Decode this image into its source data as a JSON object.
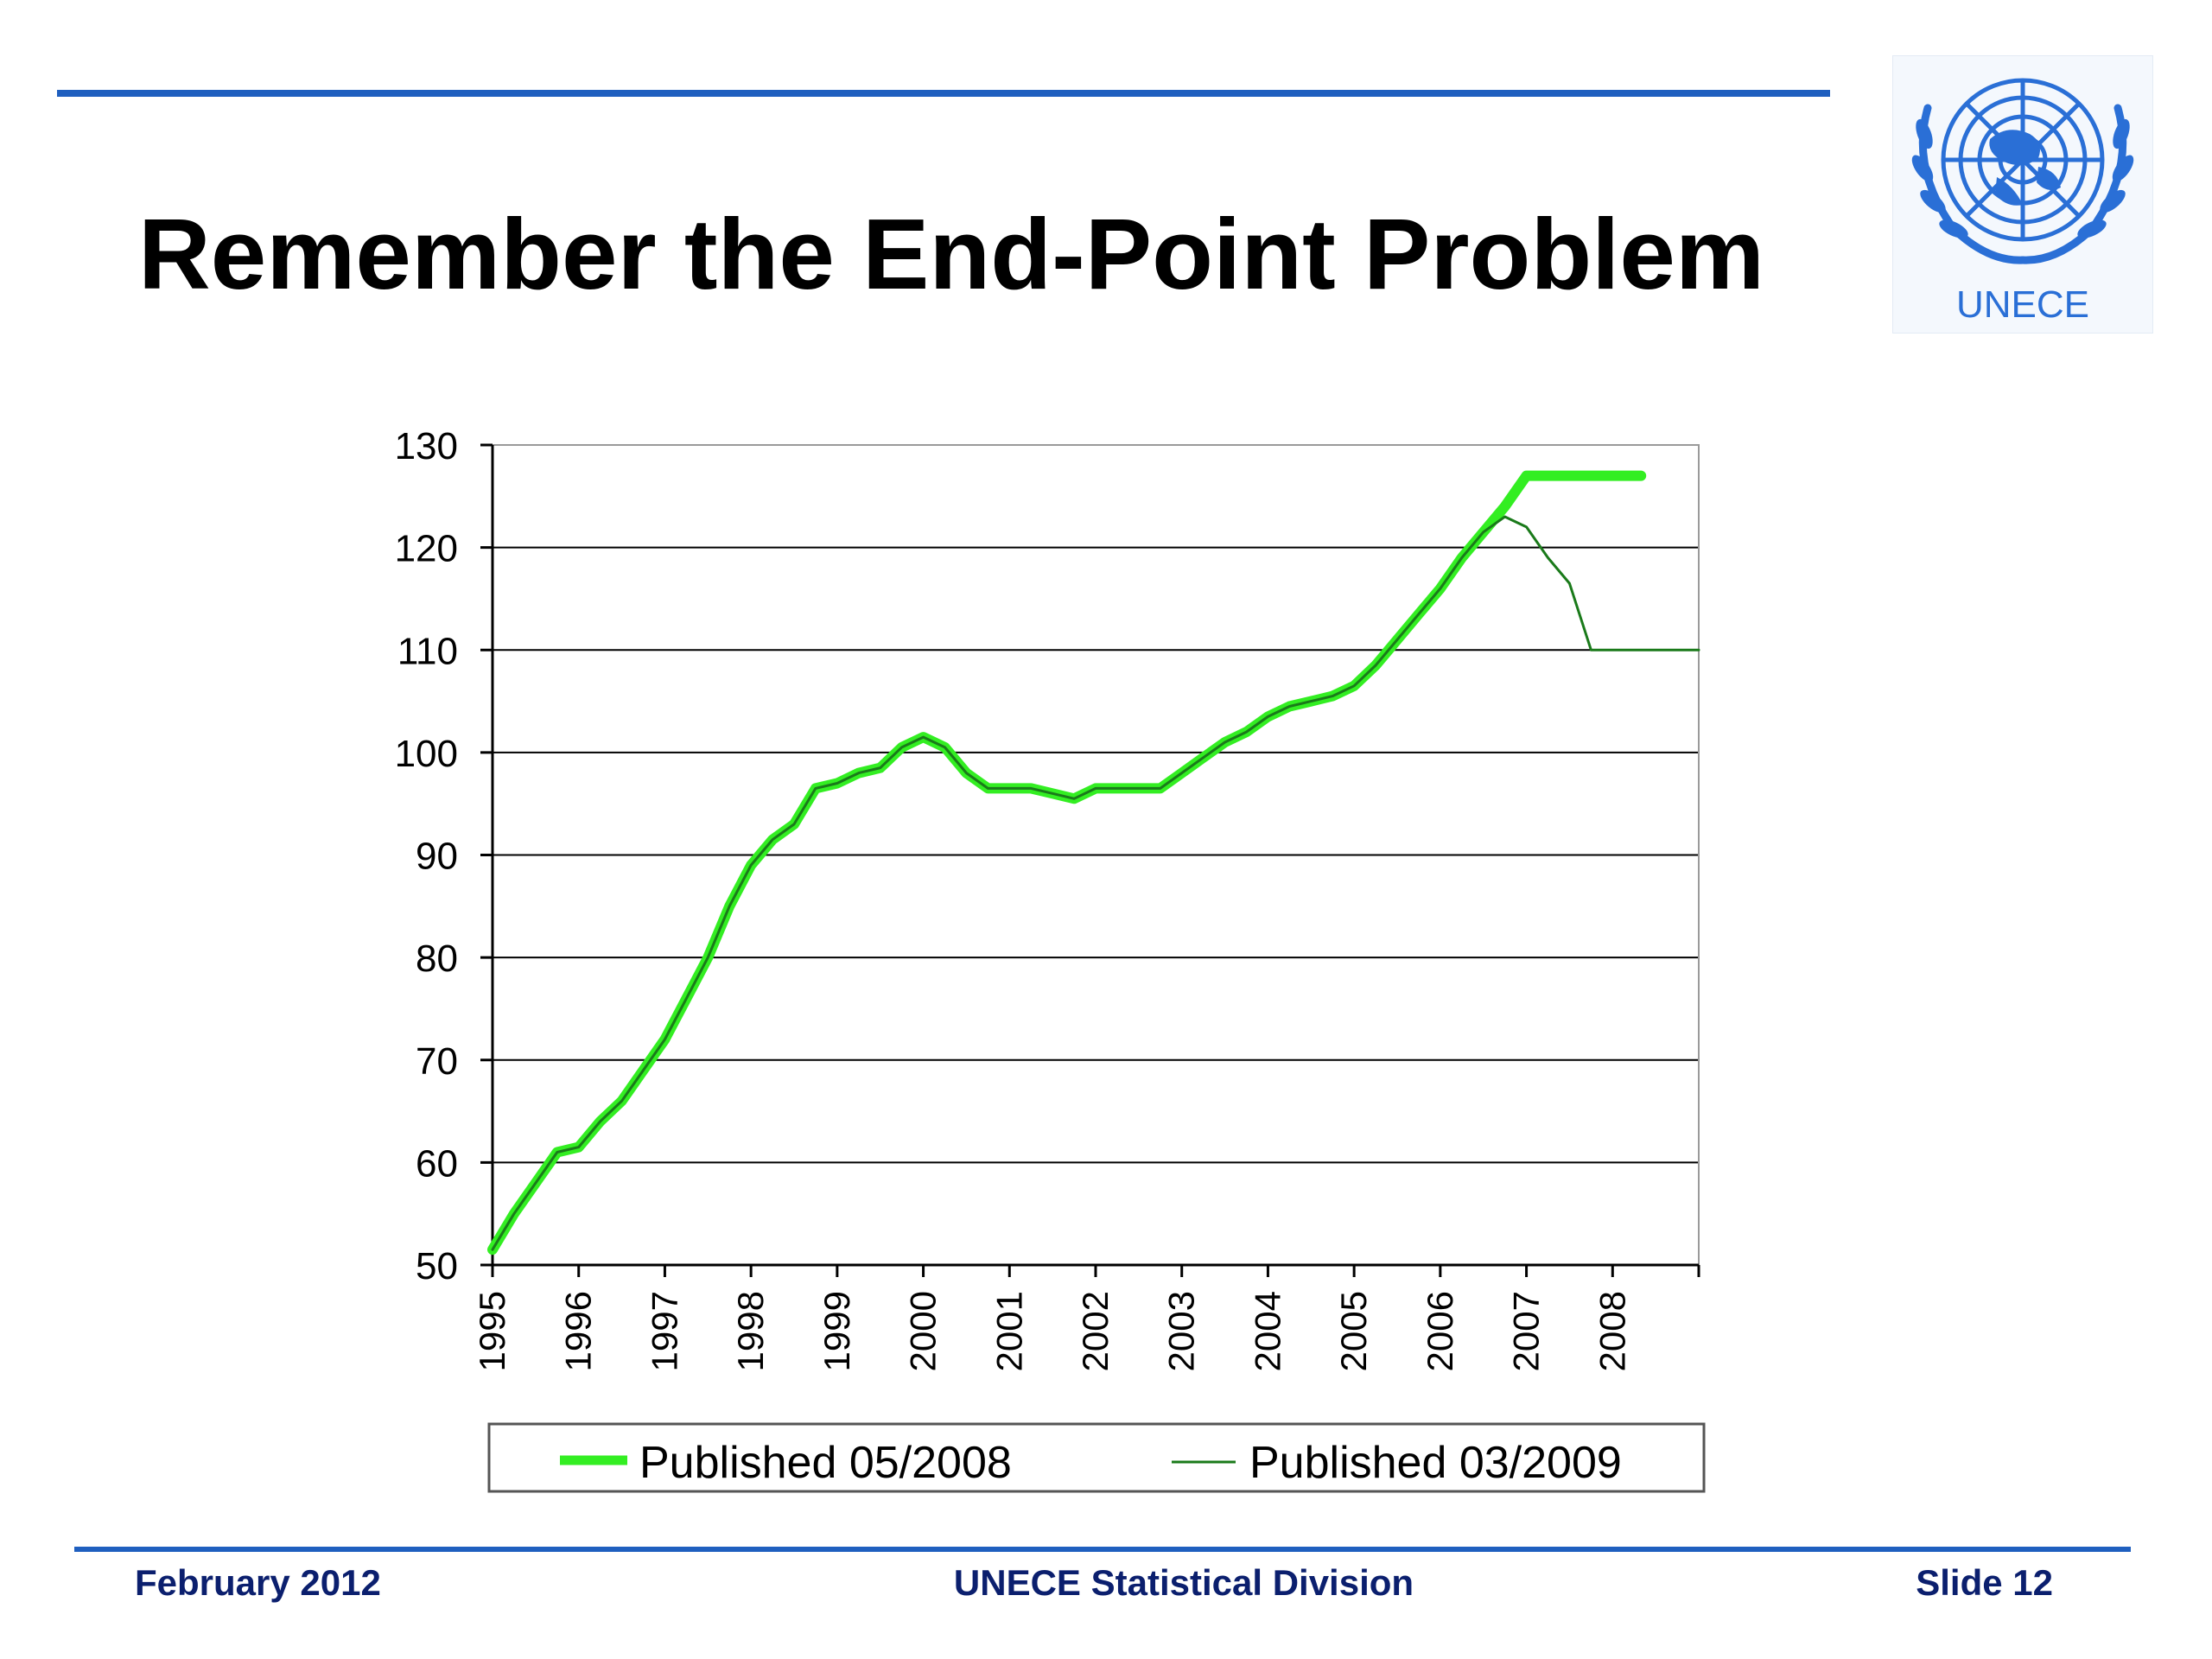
{
  "slide": {
    "title": "Remember the End-Point Problem",
    "logo_text": "UNECE",
    "footer_left": "February 2012",
    "footer_center": "UNECE Statistical Division",
    "footer_right": "Slide 12"
  },
  "colors": {
    "rule": "#1f5fbf",
    "footer_text": "#0b1f6e",
    "series_2008": "#33ee22",
    "series_2009": "#1a7a1a",
    "logo_blue": "#2a6fd6"
  },
  "chart_data": {
    "type": "line",
    "title": "",
    "xlabel": "",
    "ylabel": "",
    "ylim": [
      50,
      130
    ],
    "yticks": [
      "50",
      "60",
      "70",
      "80",
      "90",
      "100",
      "110",
      "120",
      "130"
    ],
    "xticks": [
      "1995",
      "1996",
      "1997",
      "1998",
      "1999",
      "2000",
      "2001",
      "2002",
      "2003",
      "2004",
      "2005",
      "2006",
      "2007",
      "2008"
    ],
    "xlim": [
      1995,
      2009
    ],
    "grid": true,
    "legend_position": "bottom",
    "series": [
      {
        "name": "Published 05/2008",
        "style": "thick",
        "x": [
          1995.0,
          1995.25,
          1995.5,
          1995.75,
          1996.0,
          1996.25,
          1996.5,
          1996.75,
          1997.0,
          1997.25,
          1997.5,
          1997.75,
          1998.0,
          1998.25,
          1998.5,
          1998.75,
          1999.0,
          1999.25,
          1999.5,
          1999.75,
          2000.0,
          2000.25,
          2000.5,
          2000.75,
          2001.0,
          2001.25,
          2001.5,
          2001.75,
          2002.0,
          2002.25,
          2002.5,
          2002.75,
          2003.0,
          2003.25,
          2003.5,
          2003.75,
          2004.0,
          2004.25,
          2004.5,
          2004.75,
          2005.0,
          2005.25,
          2005.5,
          2005.75,
          2006.0,
          2006.25,
          2006.5,
          2006.75,
          2007.0,
          2007.25,
          2007.5,
          2007.75,
          2008.0,
          2008.33
        ],
        "values": [
          51.5,
          55.0,
          58.0,
          61.0,
          61.5,
          64.0,
          66.0,
          69.0,
          72.0,
          76.0,
          80.0,
          85.0,
          89.0,
          91.5,
          93.0,
          96.5,
          97.0,
          98.0,
          98.5,
          100.5,
          101.5,
          100.5,
          98.0,
          96.5,
          96.5,
          96.5,
          96.0,
          95.5,
          96.5,
          96.5,
          96.5,
          96.5,
          98.0,
          99.5,
          101.0,
          102.0,
          103.5,
          104.5,
          105.0,
          105.5,
          106.5,
          108.5,
          111.0,
          113.5,
          116.0,
          119.0,
          121.5,
          124.0,
          127.0,
          127.0,
          127.0,
          127.0,
          127.0,
          127.0
        ]
      },
      {
        "name": "Published 03/2009",
        "style": "thin",
        "x": [
          1995.0,
          1995.25,
          1995.5,
          1995.75,
          1996.0,
          1996.25,
          1996.5,
          1996.75,
          1997.0,
          1997.25,
          1997.5,
          1997.75,
          1998.0,
          1998.25,
          1998.5,
          1998.75,
          1999.0,
          1999.25,
          1999.5,
          1999.75,
          2000.0,
          2000.25,
          2000.5,
          2000.75,
          2001.0,
          2001.25,
          2001.5,
          2001.75,
          2002.0,
          2002.25,
          2002.5,
          2002.75,
          2003.0,
          2003.25,
          2003.5,
          2003.75,
          2004.0,
          2004.25,
          2004.5,
          2004.75,
          2005.0,
          2005.25,
          2005.5,
          2005.75,
          2006.0,
          2006.25,
          2006.5,
          2006.75,
          2007.0,
          2007.25,
          2007.5,
          2007.75,
          2008.0,
          2008.15,
          2008.5,
          2008.75,
          2009.0
        ],
        "values": [
          51.5,
          55.0,
          58.0,
          61.0,
          61.5,
          64.0,
          66.0,
          69.0,
          72.0,
          76.0,
          80.0,
          85.0,
          89.0,
          91.5,
          93.0,
          96.5,
          97.0,
          98.0,
          98.5,
          100.5,
          101.5,
          100.5,
          98.0,
          96.5,
          96.5,
          96.5,
          96.0,
          95.5,
          96.5,
          96.5,
          96.5,
          96.5,
          98.0,
          99.5,
          101.0,
          102.0,
          103.5,
          104.5,
          105.0,
          105.5,
          106.5,
          108.5,
          111.0,
          113.5,
          116.0,
          119.0,
          121.5,
          123.0,
          122.0,
          119.0,
          116.5,
          110.0,
          110.0,
          110.0,
          110.0,
          110.0,
          110.0
        ]
      }
    ]
  }
}
